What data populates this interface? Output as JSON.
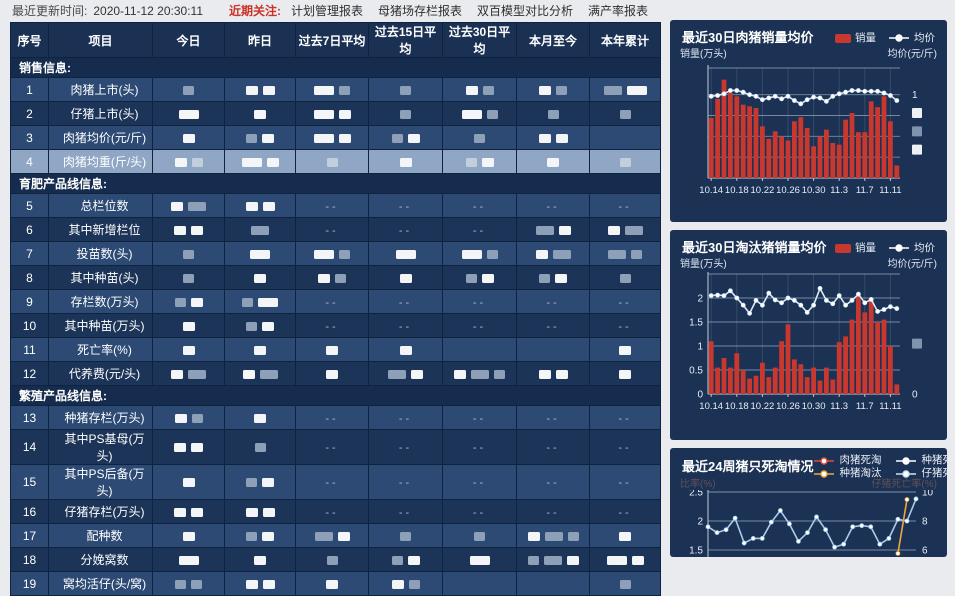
{
  "topbar": {
    "update_label": "最近更新时间:",
    "update_time": "2020-11-12 20:30:11",
    "focus_label": "近期关注:",
    "links": [
      "计划管理报表",
      "母猪场存栏报表",
      "双百模型对比分析",
      "满产率报表"
    ]
  },
  "colors": {
    "accent_red": "#cc3226",
    "bar_red": "#c8382f",
    "card_bg": "#1c3254",
    "highlight_row": "#8fa6c4"
  },
  "table": {
    "columns": [
      "序号",
      "项目",
      "今日",
      "昨日",
      "过去7日平均",
      "过去15日平均",
      "过去30日平均",
      "本月至今",
      "本年累计"
    ],
    "highlighted_row": 4,
    "sections": [
      {
        "title": "销售信息:",
        "rows": [
          {
            "no": 1,
            "label": "肉猪上市(头)",
            "cells": [
              "g",
              "ww",
              "Wg",
              "g",
              "wg",
              "wg",
              "GW"
            ]
          },
          {
            "no": 2,
            "label": "仔猪上市(头)",
            "cells": [
              "W",
              "w",
              "Ww",
              "g",
              "Wg",
              "g",
              "g"
            ]
          },
          {
            "no": 3,
            "label": "肉猪均价(元/斤)",
            "cells": [
              "w",
              "gw",
              "Ww",
              "gw",
              "g",
              "ww",
              ""
            ]
          },
          {
            "no": 4,
            "label": "肉猪均重(斤/头)",
            "cells": [
              "wg",
              "Ww",
              "g",
              "w",
              "gw",
              "w",
              "g"
            ]
          }
        ]
      },
      {
        "title": "育肥产品线信息:",
        "rows": [
          {
            "no": 5,
            "label": "总栏位数",
            "cells": [
              "wG",
              "ww",
              "--",
              "--",
              "--",
              "--",
              "--"
            ]
          },
          {
            "no": 6,
            "label": "其中新增栏位",
            "cells": [
              "ww",
              "G",
              "--",
              "--",
              "--",
              "Gw",
              "wG"
            ]
          },
          {
            "no": 7,
            "label": "投苗数(头)",
            "cells": [
              "g",
              "W",
              "Wg",
              "W",
              "Wg",
              "wG",
              "Gg"
            ]
          },
          {
            "no": 8,
            "label": "其中种苗(头)",
            "cells": [
              "g",
              "w",
              "wg",
              "w",
              "gw",
              "gw",
              "g"
            ]
          },
          {
            "no": 9,
            "label": "存栏数(万头)",
            "cells": [
              "gw",
              "gW",
              "--",
              "--",
              "--",
              "--",
              "--"
            ]
          },
          {
            "no": 10,
            "label": "其中种苗(万头)",
            "cells": [
              "w",
              "gw",
              "--",
              "--",
              "--",
              "--",
              "--"
            ]
          },
          {
            "no": 11,
            "label": "死亡率(%)",
            "cells": [
              "w",
              "w",
              "w",
              "w",
              "",
              "",
              "w"
            ]
          },
          {
            "no": 12,
            "label": "代养费(元/头)",
            "cells": [
              "wG",
              "wG",
              "w",
              "Gw",
              "wGg",
              "ww",
              "w"
            ]
          }
        ]
      },
      {
        "title": "繁殖产品线信息:",
        "rows": [
          {
            "no": 13,
            "label": "种猪存栏(万头)",
            "cells": [
              "wg",
              "w",
              "--",
              "--",
              "--",
              "--",
              "--"
            ]
          },
          {
            "no": 14,
            "label": "其中PS基母(万头)",
            "cells": [
              "ww",
              "g",
              "--",
              "--",
              "--",
              "--",
              "--"
            ]
          },
          {
            "no": 15,
            "label": "其中PS后备(万头)",
            "cells": [
              "w",
              "gw",
              "--",
              "--",
              "--",
              "--",
              "--"
            ]
          },
          {
            "no": 16,
            "label": "仔猪存栏(万头)",
            "cells": [
              "ww",
              "ww",
              "--",
              "--",
              "--",
              "--",
              "--"
            ]
          },
          {
            "no": 17,
            "label": "配种数",
            "cells": [
              "w",
              "gw",
              "Gw",
              "g",
              "g",
              "wGg",
              "w"
            ]
          },
          {
            "no": 18,
            "label": "分娩窝数",
            "cells": [
              "W",
              "w",
              "g",
              "gw",
              "W",
              "gGw",
              "Ww"
            ]
          },
          {
            "no": 19,
            "label": "窝均活仔(头/窝)",
            "cells": [
              "gg",
              "ww",
              "w",
              "wg",
              "",
              "",
              "g"
            ]
          }
        ]
      }
    ]
  },
  "chart_data": [
    {
      "type": "bar+line",
      "title": "最近30日肉猪销量均价",
      "legend": [
        {
          "label": "销量",
          "marker": "bar",
          "color": "#c8382f"
        },
        {
          "label": "均价",
          "marker": "line",
          "color": "#ffffff"
        }
      ],
      "ylabel_left": "销量(万头)",
      "ylabel_right": "均价(元/斤)",
      "x_tick_labels": [
        "10.14",
        "10.18",
        "10.22",
        "10.26",
        "10.30",
        "11.3",
        "11.7",
        "11.11"
      ],
      "n": 30,
      "ylim": [
        0,
        1.32
      ],
      "gridlines": [
        1.0,
        0.75,
        0.5,
        0.25
      ],
      "y_labels_left": [],
      "y_labels_right": [
        {
          "v": 1.0,
          "t": "1"
        },
        {
          "v": 0.78,
          "t": "█w"
        },
        {
          "v": 0.56,
          "t": "█g"
        },
        {
          "v": 0.34,
          "t": "█w"
        }
      ],
      "bars": [
        0.72,
        0.95,
        1.18,
        1.02,
        0.98,
        0.88,
        0.86,
        0.84,
        0.62,
        0.47,
        0.56,
        0.5,
        0.45,
        0.68,
        0.73,
        0.6,
        0.38,
        0.5,
        0.58,
        0.42,
        0.4,
        0.7,
        0.78,
        0.55,
        0.55,
        0.92,
        0.85,
        0.98,
        0.68,
        0.15
      ],
      "line": {
        "name": "均价",
        "color": "#d9e9f7",
        "values": [
          0.98,
          0.99,
          1.01,
          1.05,
          1.05,
          1.03,
          1.0,
          0.98,
          0.94,
          0.96,
          0.98,
          0.95,
          0.98,
          0.93,
          0.89,
          0.94,
          0.97,
          0.96,
          0.92,
          0.98,
          1.01,
          1.03,
          1.05,
          1.05,
          1.04,
          1.04,
          1.04,
          1.02,
          0.99,
          0.93
        ]
      }
    },
    {
      "type": "bar+line",
      "title": "最近30日淘汰猪销量均价",
      "legend": [
        {
          "label": "销量",
          "marker": "bar",
          "color": "#c8382f"
        },
        {
          "label": "均价",
          "marker": "line",
          "color": "#ffffff"
        }
      ],
      "ylabel_left": "销量(万头)",
      "ylabel_right": "均价(元/斤)",
      "x_tick_labels": [
        "10.14",
        "10.18",
        "10.22",
        "10.26",
        "10.30",
        "11.3",
        "11.7",
        "11.11"
      ],
      "n": 30,
      "ylim": [
        0,
        2.5
      ],
      "gridlines": [
        2.0,
        1.5,
        1.0,
        0.5
      ],
      "y_labels_left": [
        {
          "v": 2.0,
          "t": "2"
        },
        {
          "v": 1.5,
          "t": "1.5"
        },
        {
          "v": 1.0,
          "t": "1"
        },
        {
          "v": 0.5,
          "t": "0.5"
        },
        {
          "v": 0,
          "t": "0"
        }
      ],
      "y_labels_right": [
        {
          "v": 1.05,
          "t": "█g"
        },
        {
          "v": 0,
          "t": "0"
        }
      ],
      "bars": [
        1.1,
        0.55,
        0.75,
        0.55,
        0.85,
        0.5,
        0.32,
        0.38,
        0.65,
        0.35,
        0.55,
        1.1,
        1.45,
        0.72,
        0.62,
        0.35,
        0.55,
        0.28,
        0.55,
        0.3,
        1.08,
        1.2,
        1.55,
        2.05,
        1.7,
        1.95,
        1.5,
        1.55,
        1.0,
        0.2
      ],
      "line": {
        "name": "均价",
        "color": "#d9e9f7",
        "values": [
          2.05,
          2.06,
          2.05,
          2.15,
          2.0,
          1.85,
          1.68,
          1.95,
          1.85,
          2.1,
          1.96,
          1.9,
          2.0,
          1.95,
          1.85,
          1.7,
          1.85,
          2.2,
          1.95,
          1.88,
          2.05,
          1.85,
          1.95,
          2.08,
          1.9,
          1.97,
          1.72,
          1.76,
          1.82,
          1.78
        ]
      }
    },
    {
      "type": "line",
      "title": "最近24周猪只死淘情况",
      "legend": [
        {
          "label": "肉猪死淘",
          "marker": "line",
          "color": "#e14b3b"
        },
        {
          "label": "种猪死亡",
          "marker": "line",
          "color": "#ffffff"
        },
        {
          "label": "种猪淘汰",
          "marker": "line",
          "color": "#efa63e"
        },
        {
          "label": "仔猪死亡",
          "marker": "line",
          "color": "#cfe3f3"
        }
      ],
      "ylabel_left": "比率(%)",
      "ylabel_right": "仔猪死亡率(%)",
      "x_tick_labels": [],
      "n": 24,
      "ylim": [
        1.3,
        2.5
      ],
      "gridlines": [
        2.5,
        2.0,
        1.5
      ],
      "y_labels_left": [
        {
          "v": 2.5,
          "t": "2.5"
        },
        {
          "v": 2.0,
          "t": "2"
        },
        {
          "v": 1.5,
          "t": "1.5"
        }
      ],
      "y_labels_right": [
        {
          "v": 2.5,
          "t": "10"
        },
        {
          "v": 2.0,
          "t": "8"
        },
        {
          "v": 1.5,
          "t": "6"
        }
      ],
      "series": [
        {
          "name": "仔猪死亡",
          "color": "#a9cde9",
          "values": [
            1.9,
            1.8,
            1.85,
            2.05,
            1.62,
            1.7,
            1.7,
            1.98,
            2.18,
            1.95,
            1.65,
            1.8,
            2.07,
            1.85,
            1.55,
            1.6,
            1.9,
            1.92,
            1.9,
            1.6,
            1.7,
            2.03,
            2.0,
            2.38
          ]
        },
        {
          "name": "种猪淘汰",
          "color": "#efa63e",
          "values": [
            null,
            null,
            null,
            null,
            null,
            null,
            null,
            null,
            null,
            null,
            null,
            null,
            null,
            null,
            null,
            null,
            null,
            null,
            null,
            null,
            null,
            1.44,
            2.37,
            null
          ]
        }
      ]
    }
  ]
}
